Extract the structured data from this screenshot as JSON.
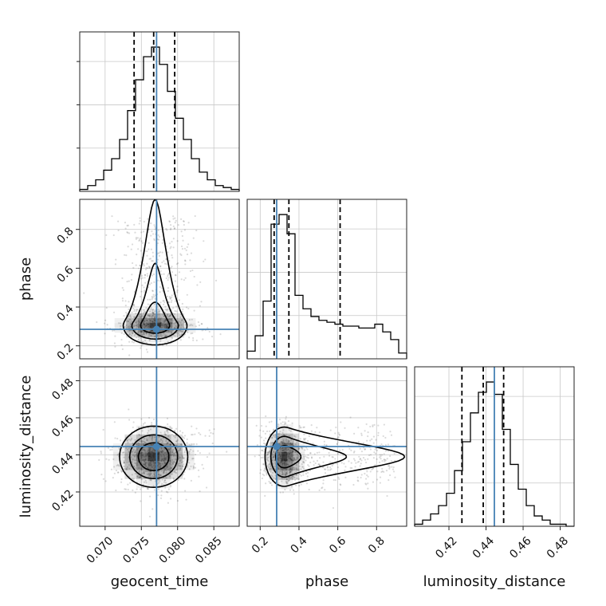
{
  "chart_data": {
    "type": "corner",
    "parameters": [
      "geocent_time",
      "phase",
      "luminosity_distance"
    ],
    "truth": {
      "geocent_time": 0.0771,
      "phase": 0.285,
      "luminosity_distance": 0.4445
    },
    "ranges": {
      "geocent_time": [
        0.0665,
        0.0885
      ],
      "phase": [
        0.133,
        0.955
      ],
      "luminosity_distance": [
        0.4015,
        0.4875
      ]
    },
    "ticks": {
      "geocent_time": {
        "values": [
          0.07,
          0.075,
          0.08,
          0.085
        ],
        "labels": [
          "0.070",
          "0.075",
          "0.080",
          "0.085"
        ]
      },
      "phase": {
        "values": [
          0.2,
          0.4,
          0.6,
          0.8
        ],
        "labels": [
          "0.2",
          "0.4",
          "0.6",
          "0.8"
        ]
      },
      "luminosity_distance": {
        "values": [
          0.42,
          0.44,
          0.46,
          0.48
        ],
        "labels": [
          "0.42",
          "0.44",
          "0.46",
          "0.48"
        ]
      }
    },
    "quantiles": {
      "geocent_time": [
        0.074,
        0.0767,
        0.0796
      ],
      "phase": [
        0.272,
        0.348,
        0.612
      ],
      "luminosity_distance": [
        0.427,
        0.4385,
        0.4495
      ]
    },
    "histograms": {
      "geocent_time": [
        1,
        3,
        6,
        11,
        17,
        27,
        42,
        58,
        70,
        75,
        66,
        52,
        38,
        27,
        17,
        10,
        6,
        3,
        2,
        1
      ],
      "phase": [
        4,
        12,
        30,
        70,
        75,
        65,
        33,
        26,
        22,
        20,
        19,
        18,
        17,
        17,
        16,
        16,
        18,
        14,
        10,
        3
      ],
      "luminosity_distance": [
        1,
        3,
        6,
        10,
        16,
        27,
        41,
        55,
        65,
        70,
        64,
        47,
        30,
        18,
        10,
        5,
        3,
        1,
        1,
        0
      ]
    },
    "grid": true,
    "xlabel": "geocent_time",
    "ylabel_row2": "phase",
    "ylabel_row3": "luminosity_distance"
  }
}
